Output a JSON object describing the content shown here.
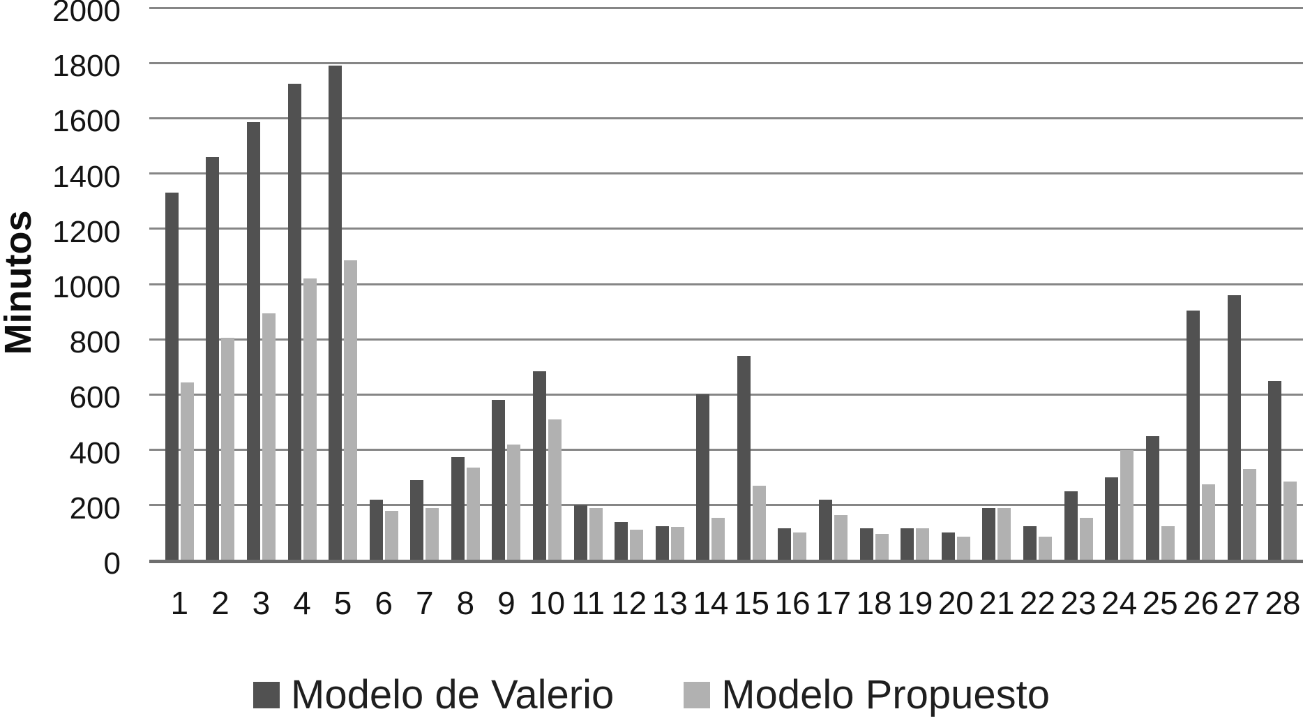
{
  "chart_data": {
    "type": "bar",
    "title": "",
    "ylabel": "Minutos",
    "xlabel": "",
    "categories": [
      "1",
      "2",
      "3",
      "4",
      "5",
      "6",
      "7",
      "8",
      "9",
      "10",
      "11",
      "12",
      "13",
      "14",
      "15",
      "16",
      "17",
      "18",
      "19",
      "20",
      "21",
      "22",
      "23",
      "24",
      "25",
      "26",
      "27",
      "28"
    ],
    "series": [
      {
        "name": "Modelo de Valerio",
        "color": "#515151",
        "values": [
          1330,
          1460,
          1585,
          1725,
          1790,
          220,
          290,
          375,
          580,
          685,
          200,
          140,
          125,
          600,
          740,
          115,
          220,
          115,
          115,
          100,
          190,
          125,
          250,
          300,
          450,
          905,
          960,
          650
        ]
      },
      {
        "name": "Modelo Propuesto",
        "color": "#b1b1b1",
        "values": [
          645,
          805,
          895,
          1020,
          1085,
          180,
          190,
          335,
          420,
          510,
          190,
          110,
          120,
          155,
          270,
          100,
          165,
          95,
          115,
          85,
          190,
          85,
          155,
          400,
          125,
          275,
          330,
          285
        ]
      }
    ],
    "ylim": [
      0,
      2000
    ],
    "ytick_step": 200,
    "yticks": [
      "0",
      "200",
      "400",
      "600",
      "800",
      "1000",
      "1200",
      "1400",
      "1600",
      "1800",
      "2000"
    ],
    "grid": true,
    "grid_color": "#868686",
    "axis_color": "#6e6e6e",
    "legend_position": "bottom"
  }
}
